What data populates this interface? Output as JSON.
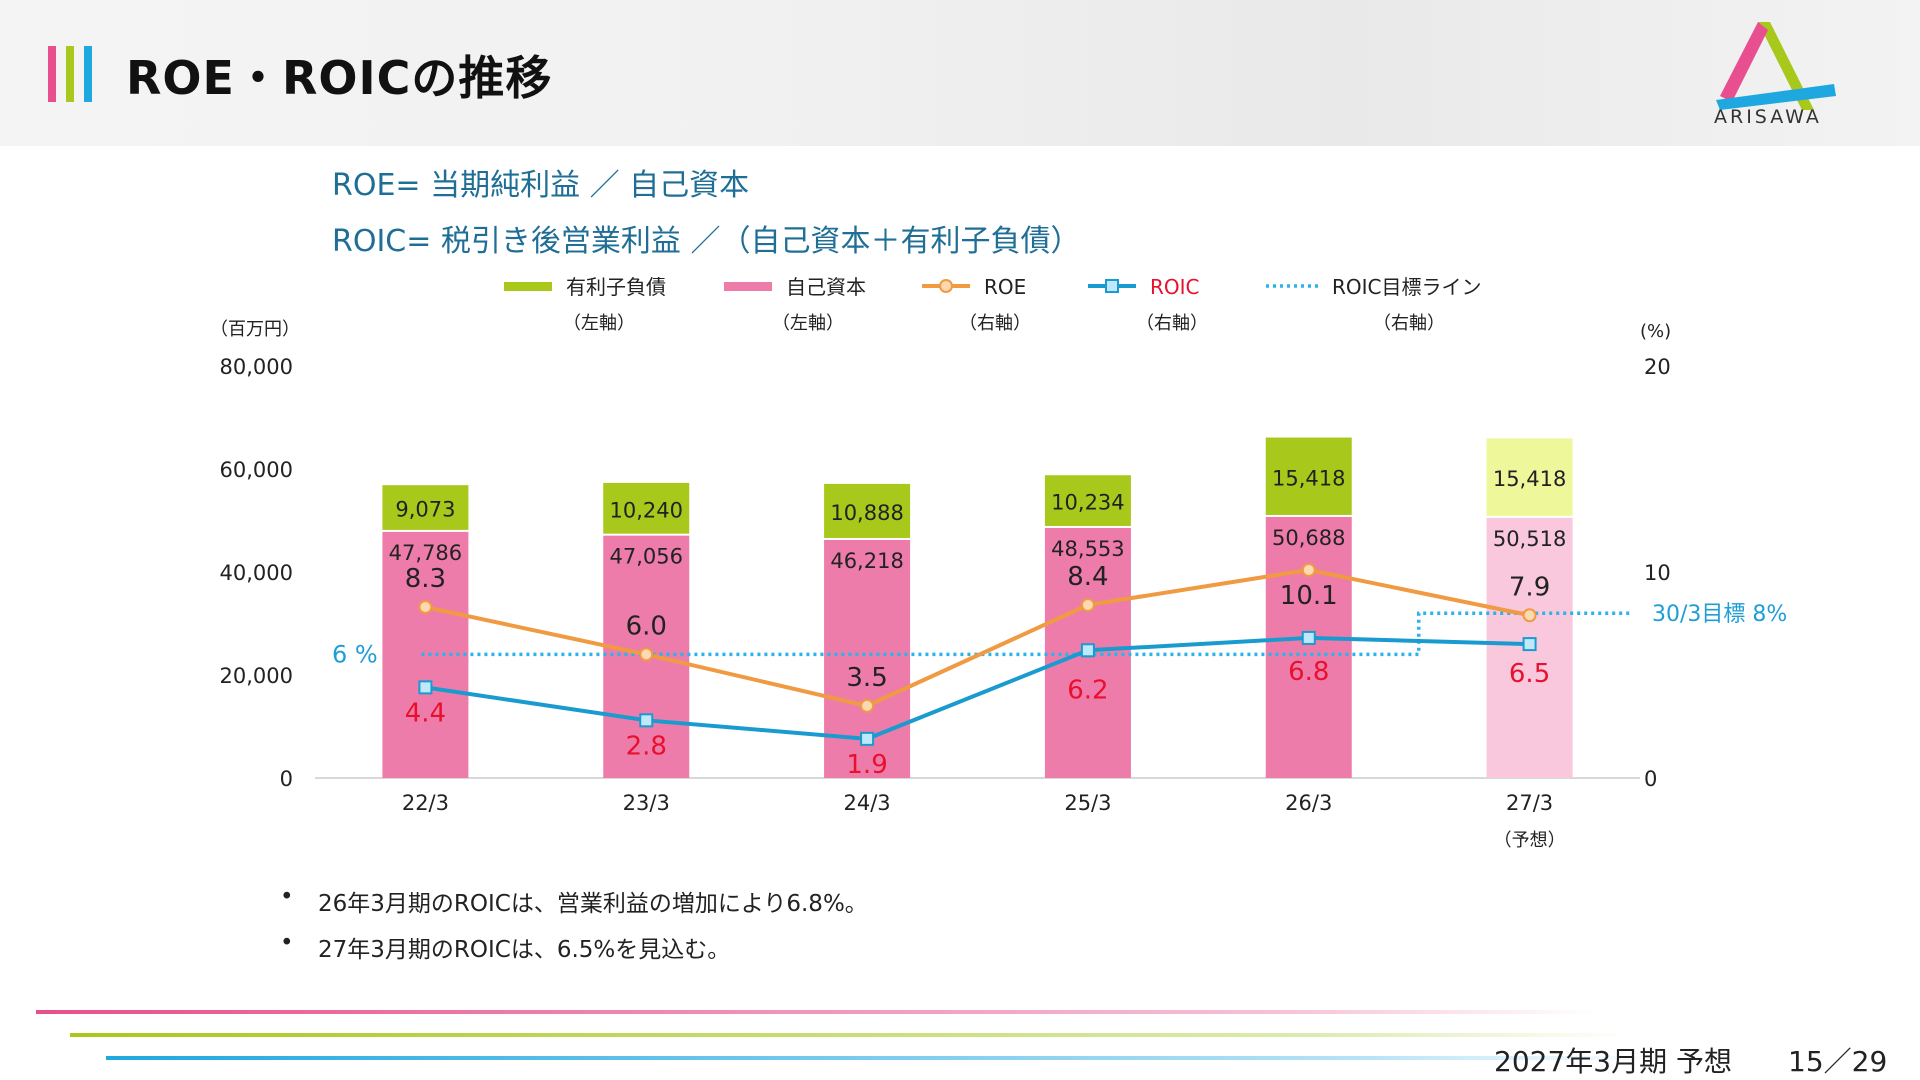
{
  "header": {
    "title": "ROE・ROICの推移",
    "logo_text": "ARISAWA",
    "accent_colors": [
      "#e74f8e",
      "#a8c81c",
      "#1fa8e0"
    ]
  },
  "formulas": [
    "ROE= 当期純利益 ／ 自己資本",
    "ROIC=  税引き後営業利益 ／（自己資本＋有利子負債）"
  ],
  "chart_data": {
    "type": "bar",
    "categories": [
      "22/3",
      "23/3",
      "24/3",
      "25/3",
      "26/3",
      "27/3"
    ],
    "category_note": "（予想）",
    "forecast_index": 5,
    "y_left": {
      "unit": "（百万円）",
      "ylim": [
        0,
        80000
      ],
      "ticks": [
        "0",
        "20,000",
        "40,000",
        "60,000",
        "80,000"
      ]
    },
    "y_right": {
      "unit": "(%)",
      "ylim": [
        0,
        20
      ],
      "ticks": [
        "0",
        "10",
        "20"
      ]
    },
    "legend": [
      {
        "label": "有利子負債",
        "sub": "（左軸）",
        "kind": "bar",
        "color": "#a8c81c"
      },
      {
        "label": "自己資本",
        "sub": "（左軸）",
        "kind": "bar",
        "color": "#ee7cab"
      },
      {
        "label": "ROE",
        "sub": "（右軸）",
        "kind": "line-circle",
        "color": "#f09a42"
      },
      {
        "label": "ROIC",
        "sub": "（右軸）",
        "kind": "line-square",
        "color": "#1a9bd0"
      },
      {
        "label": "ROIC目標ライン",
        "sub": "（右軸）",
        "kind": "dotted",
        "color": "#2ab4ea"
      }
    ],
    "series": [
      {
        "name": "自己資本",
        "axis": "left",
        "color": "#ee7cab",
        "forecast_color": "#f9c8dc",
        "values": [
          47786,
          47056,
          46218,
          48553,
          50688,
          50518
        ],
        "labels": [
          "47,786",
          "47,056",
          "46,218",
          "48,553",
          "50,688",
          "50,518"
        ]
      },
      {
        "name": "有利子負債",
        "axis": "left",
        "color": "#a8c81c",
        "forecast_color": "#eef79a",
        "values": [
          9073,
          10240,
          10888,
          10234,
          15418,
          15418
        ],
        "labels": [
          "9,073",
          "10,240",
          "10,888",
          "10,234",
          "15,418",
          "15,418"
        ]
      },
      {
        "name": "ROE",
        "axis": "right",
        "color": "#f09a42",
        "values": [
          8.3,
          6.0,
          3.5,
          8.4,
          10.1,
          7.9
        ],
        "labels": [
          "8.3",
          "6.0",
          "3.5",
          "8.4",
          "10.1",
          "7.9"
        ]
      },
      {
        "name": "ROIC",
        "axis": "right",
        "color": "#1a9bd0",
        "label_color": "#e8112d",
        "values": [
          4.4,
          2.8,
          1.9,
          6.2,
          6.8,
          6.5
        ],
        "labels": [
          "4.4",
          "2.8",
          "1.9",
          "6.2",
          "6.8",
          "6.5"
        ]
      }
    ],
    "target_line": {
      "segments": [
        {
          "value": 6,
          "from": 0,
          "to": 4
        },
        {
          "value": 8,
          "from": 5,
          "to": 5
        }
      ],
      "label_left": "6 %",
      "label_right": "30/3目標 8%"
    }
  },
  "bullets": [
    "26年3月期のROICは、営業利益の増加により6.8%。",
    "27年3月期のROICは、6.5%を見込む。"
  ],
  "bullet_symbol": "•",
  "footer": {
    "period": "2027年3月期 予想",
    "page": "15／29"
  }
}
